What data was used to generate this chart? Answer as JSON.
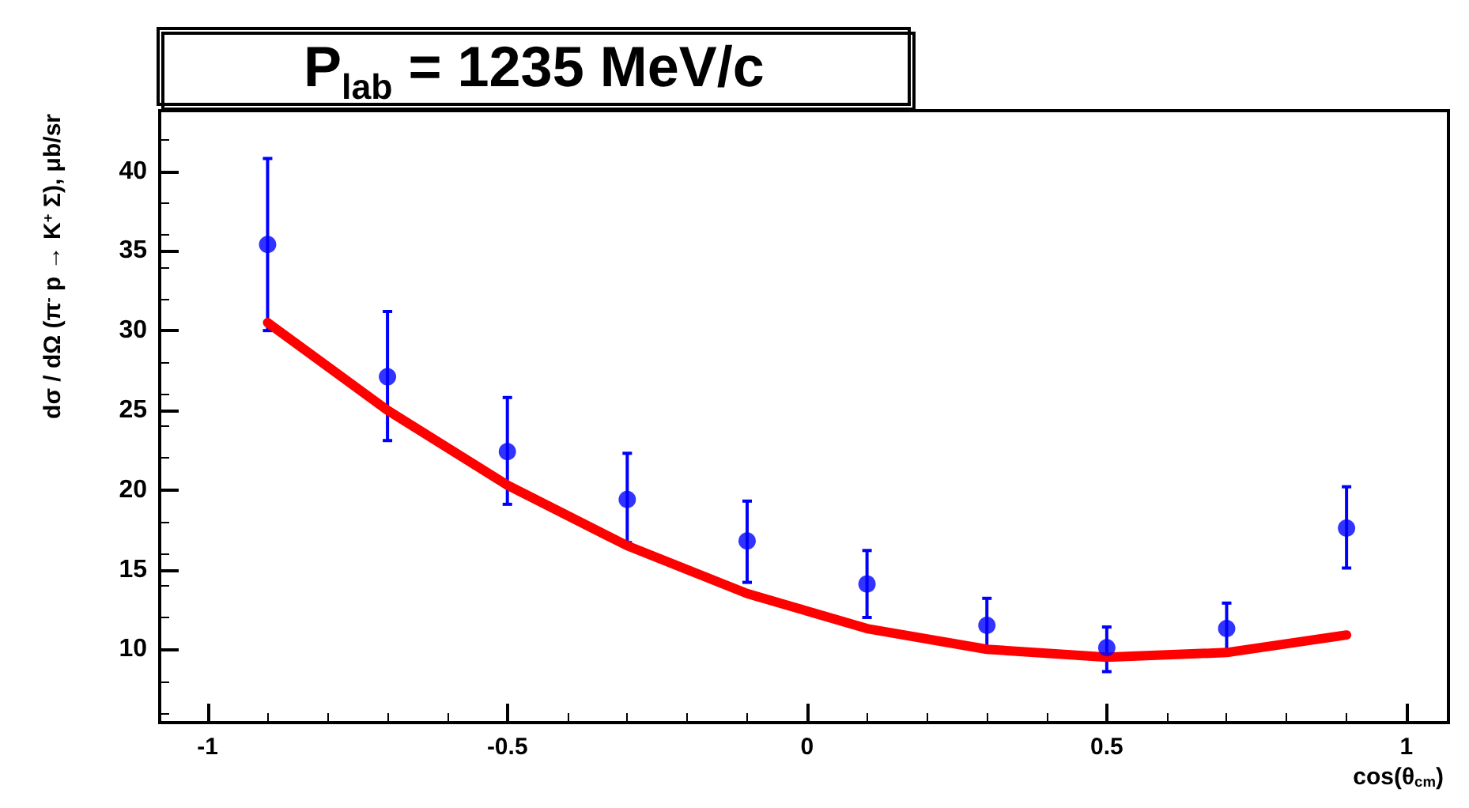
{
  "chart_data": {
    "type": "scatter",
    "title": "P$_{lab}$ = 1235 MeV/c",
    "xlabel": "cos(θ$_{cm}$)",
    "ylabel": "dσ / dΩ (π$^{-}$ p → K$^{+}$ Σ), μb/sr",
    "xlim": [
      -1.08,
      1.07
    ],
    "ylim": [
      5.4,
      43.8
    ],
    "xticks": [
      -1,
      -0.5,
      0,
      0.5,
      1
    ],
    "yticks": [
      10,
      15,
      20,
      25,
      30,
      35,
      40
    ],
    "grid": false,
    "x": [
      -0.9,
      -0.7,
      -0.5,
      -0.3,
      -0.1,
      0.1,
      0.3,
      0.5,
      0.7,
      0.9
    ],
    "series": [
      {
        "color": "#0000ff",
        "marker": "circle",
        "values": [
          35.4,
          27.1,
          22.4,
          19.4,
          16.8,
          14.1,
          11.5,
          10.1,
          11.3,
          17.6
        ],
        "errors": [
          [
            30.0,
            40.8
          ],
          [
            23.1,
            31.2
          ],
          [
            19.1,
            25.8
          ],
          [
            16.7,
            22.3
          ],
          [
            14.2,
            19.3
          ],
          [
            12.0,
            16.2
          ],
          [
            10.1,
            13.2
          ],
          [
            8.6,
            11.4
          ],
          [
            9.8,
            12.9
          ],
          [
            15.1,
            20.2
          ]
        ]
      },
      {
        "type": "line",
        "color": "#ff0000",
        "marker": "none",
        "line_style": "solid",
        "values": [
          30.5,
          25.0,
          20.3,
          16.5,
          13.5,
          11.3,
          10.0,
          9.5,
          9.8,
          10.9
        ]
      }
    ]
  }
}
